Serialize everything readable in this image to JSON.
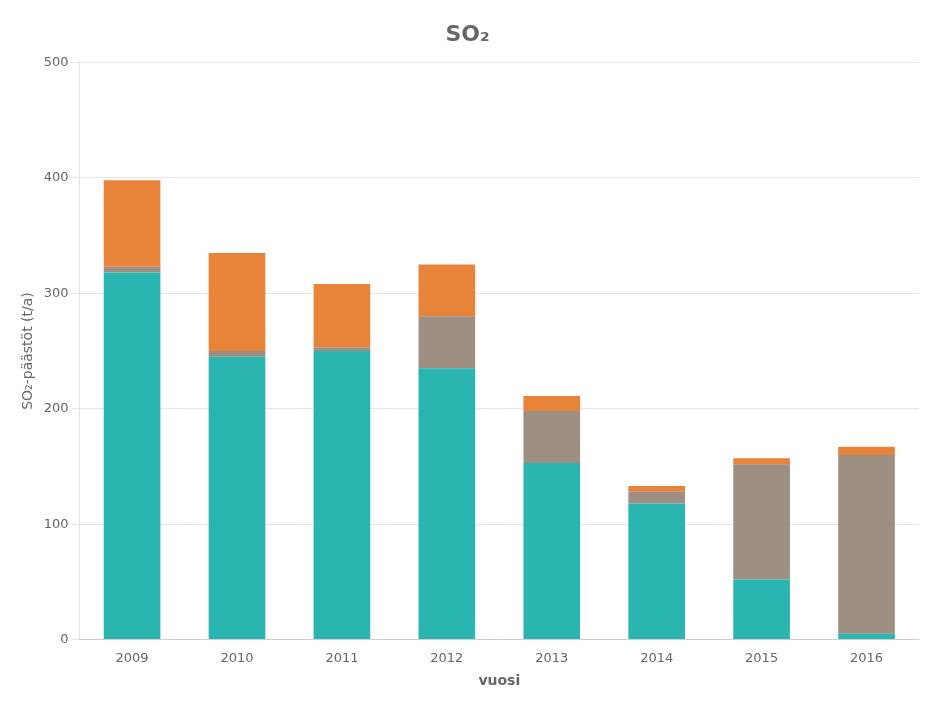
{
  "chart_data": {
    "type": "bar",
    "title": "SO₂",
    "xlabel": "vuosi",
    "ylabel": "SO₂-päästöt (t/a)",
    "categories": [
      "2009",
      "2010",
      "2011",
      "2012",
      "2013",
      "2014",
      "2015",
      "2016"
    ],
    "series": [
      {
        "color": "#2ab5b0",
        "values": [
          318,
          245,
          250,
          235,
          153,
          118,
          52,
          5
        ]
      },
      {
        "color": "#9e8f82",
        "values": [
          5,
          5,
          3,
          45,
          45,
          10,
          100,
          155
        ]
      },
      {
        "color": "#e8833a",
        "values": [
          75,
          85,
          55,
          45,
          13,
          5,
          5,
          7
        ]
      }
    ],
    "ylim": [
      0,
      500
    ],
    "yticks": [
      0,
      100,
      200,
      300,
      400,
      500
    ],
    "grid": true,
    "stacked": true
  }
}
